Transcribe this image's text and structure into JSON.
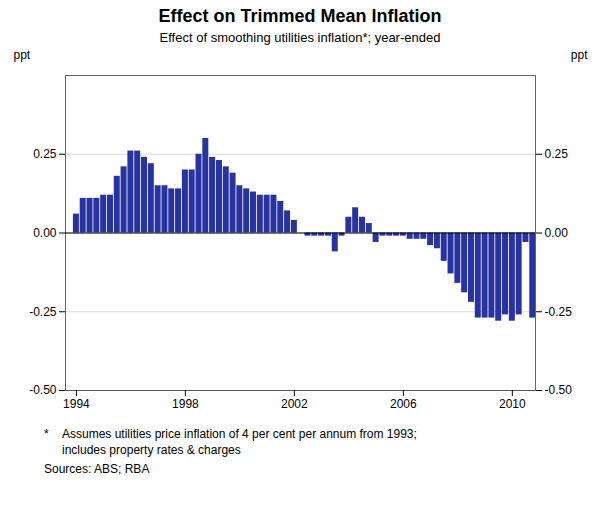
{
  "chart_data": {
    "type": "bar",
    "title": "Effect on Trimmed Mean Inflation",
    "subtitle": "Effect of smoothing utilities inflation*; year-ended",
    "ylabel": "ppt",
    "y2label": "ppt",
    "footnote_marker": "*",
    "footnotes": [
      "Assumes utilities price inflation of 4 per cent per annum from 1993;",
      "includes property rates & charges"
    ],
    "source": "Sources: ABS; RBA",
    "color": "#2832a0",
    "x": [
      1994,
      1994.25,
      1994.5,
      1994.75,
      1995,
      1995.25,
      1995.5,
      1995.75,
      1996,
      1996.25,
      1996.5,
      1996.75,
      1997,
      1997.25,
      1997.5,
      1997.75,
      1998,
      1998.25,
      1998.5,
      1998.75,
      1999,
      1999.25,
      1999.5,
      1999.75,
      2000,
      2000.25,
      2000.5,
      2000.75,
      2001,
      2001.25,
      2001.5,
      2001.75,
      2002,
      2002.25,
      2002.5,
      2002.75,
      2003,
      2003.25,
      2003.5,
      2003.75,
      2004,
      2004.25,
      2004.5,
      2004.75,
      2005,
      2005.25,
      2005.5,
      2005.75,
      2006,
      2006.25,
      2006.5,
      2006.75,
      2007,
      2007.25,
      2007.5,
      2007.75,
      2008,
      2008.25,
      2008.5,
      2008.75,
      2009,
      2009.25,
      2009.5,
      2009.75,
      2010,
      2010.25,
      2010.5,
      2010.75
    ],
    "values": [
      0.06,
      0.11,
      0.11,
      0.11,
      0.12,
      0.12,
      0.18,
      0.21,
      0.26,
      0.26,
      0.24,
      0.22,
      0.15,
      0.15,
      0.14,
      0.14,
      0.2,
      0.2,
      0.25,
      0.3,
      0.24,
      0.23,
      0.21,
      0.19,
      0.15,
      0.14,
      0.13,
      0.12,
      0.12,
      0.12,
      0.1,
      0.07,
      0.04,
      0.0,
      -0.01,
      -0.01,
      -0.01,
      -0.01,
      -0.06,
      -0.01,
      0.05,
      0.08,
      0.05,
      0.03,
      -0.03,
      -0.01,
      -0.01,
      -0.01,
      -0.01,
      -0.02,
      -0.02,
      -0.02,
      -0.04,
      -0.05,
      -0.09,
      -0.13,
      -0.16,
      -0.19,
      -0.22,
      -0.27,
      -0.27,
      -0.27,
      -0.28,
      -0.26,
      -0.28,
      -0.26,
      -0.03,
      -0.27
    ],
    "xlim": [
      1993.6,
      2010.85
    ],
    "xticks": [
      1994,
      1998,
      2002,
      2006,
      2010
    ],
    "ylim": [
      -0.5,
      0.5
    ],
    "yticks": [
      {
        "value": -0.5,
        "label": "-0.50"
      },
      {
        "value": -0.25,
        "label": "-0.25"
      },
      {
        "value": 0,
        "label": "0.00"
      },
      {
        "value": 0.25,
        "label": "0.25"
      }
    ],
    "grid": true
  }
}
